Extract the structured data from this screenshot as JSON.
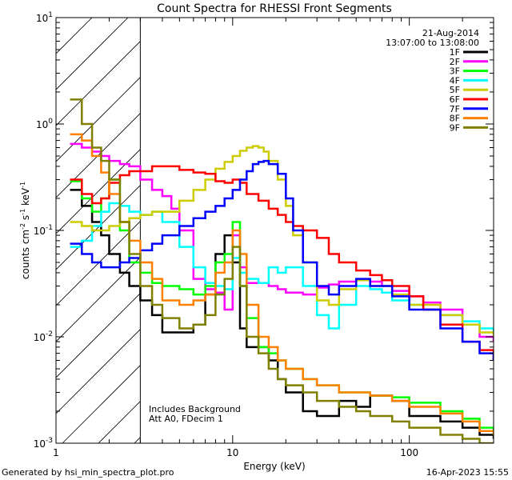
{
  "chart_data": {
    "type": "line",
    "title": "Count Spectra for RHESSI Front Segments",
    "xlabel": "Energy (keV)",
    "ylabel_main": "counts cm",
    "ylabel_exp1": "-2",
    "ylabel_mid": " s",
    "ylabel_exp2": "-1",
    "ylabel_end": " keV",
    "ylabel_exp3": "-1",
    "xscale": "log",
    "yscale": "log",
    "xlim": [
      1,
      300
    ],
    "ylim": [
      0.001,
      10
    ],
    "x_tick_labels": [
      {
        "value": 1,
        "label": "1"
      },
      {
        "value": 10,
        "label": "10"
      },
      {
        "value": 100,
        "label": "100"
      }
    ],
    "y_tick_labels": [
      {
        "value": 10,
        "base": "10",
        "exp": "1"
      },
      {
        "value": 1,
        "base": "10",
        "exp": "0"
      },
      {
        "value": 0.1,
        "base": "10",
        "exp": "-1"
      },
      {
        "value": 0.01,
        "base": "10",
        "exp": "-2"
      },
      {
        "value": 0.001,
        "base": "10",
        "exp": "-3"
      }
    ],
    "date": "21-Aug-2014",
    "time_range": "13:07:00 to 13:08:00",
    "annotations": [
      "Includes Background",
      "Att A0, FDecim 1"
    ],
    "hatched_region_x": [
      1,
      3
    ],
    "series": [
      {
        "name": "1F",
        "color": "#000000",
        "x": [
          1.2,
          1.4,
          1.6,
          1.8,
          2,
          2.3,
          2.6,
          3,
          3.5,
          4,
          5,
          6,
          7,
          8,
          9,
          10,
          11,
          12,
          14,
          16,
          18,
          20,
          25,
          30,
          40,
          50,
          60,
          80,
          100,
          150,
          200,
          250,
          300
        ],
        "y": [
          0.24,
          0.17,
          0.12,
          0.09,
          0.06,
          0.04,
          0.03,
          0.022,
          0.016,
          0.011,
          0.011,
          0.013,
          0.025,
          0.06,
          0.09,
          0.05,
          0.012,
          0.008,
          0.008,
          0.006,
          0.004,
          0.003,
          0.002,
          0.0018,
          0.0025,
          0.0022,
          0.0028,
          0.0025,
          0.0018,
          0.0016,
          0.0014,
          0.0012,
          0.0011
        ]
      },
      {
        "name": "2F",
        "color": "#ff00ff",
        "x": [
          1.2,
          1.4,
          1.6,
          1.8,
          2,
          2.3,
          2.6,
          3,
          3.5,
          4,
          4.5,
          5,
          6,
          7,
          8,
          9,
          10,
          11,
          12,
          14,
          16,
          18,
          20,
          25,
          30,
          35,
          40,
          50,
          60,
          70,
          80,
          100,
          120,
          150,
          200,
          250,
          300
        ],
        "y": [
          0.65,
          0.6,
          0.55,
          0.5,
          0.45,
          0.42,
          0.4,
          0.3,
          0.24,
          0.21,
          0.16,
          0.1,
          0.035,
          0.028,
          0.026,
          0.018,
          0.09,
          0.045,
          0.032,
          0.032,
          0.03,
          0.028,
          0.026,
          0.025,
          0.029,
          0.031,
          0.033,
          0.034,
          0.033,
          0.03,
          0.027,
          0.024,
          0.021,
          0.018,
          0.013,
          0.01,
          0.009
        ]
      },
      {
        "name": "3F",
        "color": "#00ff00",
        "x": [
          1.2,
          1.4,
          1.6,
          1.8,
          2,
          2.3,
          2.6,
          3,
          3.5,
          4,
          5,
          6,
          7,
          8,
          9,
          10,
          11,
          12,
          14,
          16,
          18,
          20,
          25,
          30,
          40,
          50,
          60,
          80,
          100,
          150,
          200,
          250,
          300
        ],
        "y": [
          0.29,
          0.2,
          0.15,
          0.2,
          0.3,
          0.1,
          0.05,
          0.04,
          0.032,
          0.03,
          0.028,
          0.025,
          0.03,
          0.05,
          0.06,
          0.12,
          0.03,
          0.015,
          0.008,
          0.007,
          0.006,
          0.005,
          0.004,
          0.0035,
          0.003,
          0.003,
          0.0028,
          0.0027,
          0.0024,
          0.002,
          0.0017,
          0.0014,
          0.0012
        ]
      },
      {
        "name": "4F",
        "color": "#00ffff",
        "x": [
          1.2,
          1.4,
          1.6,
          1.8,
          2,
          2.3,
          2.6,
          3,
          3.5,
          4,
          5,
          6,
          7,
          8,
          9,
          10,
          11,
          12,
          14,
          16,
          18,
          20,
          25,
          30,
          35,
          40,
          50,
          60,
          70,
          80,
          100,
          120,
          150,
          200,
          250,
          300
        ],
        "y": [
          0.07,
          0.08,
          0.11,
          0.15,
          0.18,
          0.17,
          0.15,
          0.14,
          0.15,
          0.12,
          0.07,
          0.045,
          0.032,
          0.03,
          0.028,
          0.055,
          0.04,
          0.035,
          0.032,
          0.045,
          0.04,
          0.045,
          0.03,
          0.016,
          0.012,
          0.02,
          0.03,
          0.028,
          0.026,
          0.022,
          0.02,
          0.018,
          0.016,
          0.014,
          0.012,
          0.011
        ]
      },
      {
        "name": "5F",
        "color": "#cccc00",
        "x": [
          1.2,
          1.4,
          1.6,
          1.8,
          2,
          2.3,
          2.6,
          3,
          3.5,
          4,
          5,
          6,
          7,
          8,
          9,
          10,
          11,
          12,
          13,
          14,
          15,
          16,
          18,
          20,
          22,
          25,
          30,
          35,
          40,
          50,
          60,
          80,
          100,
          150,
          200,
          250,
          300
        ],
        "y": [
          0.12,
          0.11,
          0.1,
          0.1,
          0.11,
          0.12,
          0.13,
          0.14,
          0.15,
          0.15,
          0.19,
          0.24,
          0.3,
          0.38,
          0.44,
          0.5,
          0.56,
          0.6,
          0.62,
          0.6,
          0.55,
          0.45,
          0.3,
          0.17,
          0.09,
          0.05,
          0.022,
          0.02,
          0.028,
          0.034,
          0.03,
          0.025,
          0.02,
          0.016,
          0.013,
          0.011,
          0.01
        ]
      },
      {
        "name": "6F",
        "color": "#ff0000",
        "x": [
          1.2,
          1.4,
          1.6,
          1.8,
          2,
          2.3,
          2.6,
          3,
          3.5,
          4,
          5,
          6,
          7,
          8,
          9,
          10,
          11,
          12,
          14,
          16,
          18,
          20,
          22,
          25,
          30,
          35,
          40,
          50,
          60,
          70,
          80,
          100,
          120,
          150,
          200,
          250,
          300
        ],
        "y": [
          0.3,
          0.22,
          0.18,
          0.2,
          0.28,
          0.33,
          0.36,
          0.36,
          0.4,
          0.4,
          0.37,
          0.35,
          0.34,
          0.29,
          0.28,
          0.3,
          0.28,
          0.22,
          0.19,
          0.16,
          0.14,
          0.12,
          0.11,
          0.1,
          0.085,
          0.06,
          0.05,
          0.042,
          0.038,
          0.034,
          0.03,
          0.024,
          0.018,
          0.013,
          0.009,
          0.0075,
          0.006
        ]
      },
      {
        "name": "7F",
        "color": "#0000ff",
        "x": [
          1.2,
          1.4,
          1.6,
          1.8,
          2,
          2.3,
          2.6,
          3,
          3.5,
          4,
          5,
          6,
          7,
          8,
          9,
          10,
          11,
          12,
          13,
          14,
          15,
          16,
          18,
          20,
          22,
          25,
          30,
          35,
          40,
          50,
          60,
          80,
          100,
          150,
          200,
          250,
          300
        ],
        "y": [
          0.075,
          0.06,
          0.05,
          0.045,
          0.045,
          0.05,
          0.055,
          0.065,
          0.075,
          0.09,
          0.11,
          0.13,
          0.15,
          0.17,
          0.2,
          0.24,
          0.3,
          0.36,
          0.42,
          0.44,
          0.45,
          0.42,
          0.34,
          0.2,
          0.1,
          0.05,
          0.03,
          0.025,
          0.03,
          0.035,
          0.03,
          0.024,
          0.018,
          0.012,
          0.009,
          0.007,
          0.006
        ]
      },
      {
        "name": "8F",
        "color": "#ff8000",
        "x": [
          1.2,
          1.4,
          1.6,
          1.8,
          2,
          2.3,
          2.6,
          3,
          3.5,
          4,
          5,
          6,
          7,
          8,
          9,
          10,
          11,
          12,
          14,
          16,
          18,
          20,
          25,
          30,
          40,
          50,
          60,
          80,
          100,
          150,
          200,
          250,
          300
        ],
        "y": [
          0.8,
          0.7,
          0.5,
          0.35,
          0.22,
          0.12,
          0.08,
          0.05,
          0.035,
          0.022,
          0.02,
          0.022,
          0.025,
          0.04,
          0.05,
          0.1,
          0.06,
          0.02,
          0.01,
          0.008,
          0.006,
          0.005,
          0.004,
          0.0035,
          0.003,
          0.003,
          0.0028,
          0.0025,
          0.0022,
          0.0019,
          0.0016,
          0.0013,
          0.0012
        ]
      },
      {
        "name": "9F",
        "color": "#808000",
        "x": [
          1.2,
          1.4,
          1.6,
          1.8,
          2,
          2.3,
          2.6,
          3,
          3.5,
          4,
          5,
          6,
          7,
          8,
          9,
          10,
          11,
          12,
          14,
          16,
          18,
          20,
          25,
          30,
          40,
          50,
          60,
          80,
          100,
          150,
          200,
          250,
          300
        ],
        "y": [
          1.7,
          1.0,
          0.6,
          0.45,
          0.3,
          0.12,
          0.06,
          0.03,
          0.02,
          0.015,
          0.012,
          0.013,
          0.016,
          0.025,
          0.035,
          0.07,
          0.03,
          0.01,
          0.007,
          0.005,
          0.004,
          0.0035,
          0.003,
          0.0025,
          0.0022,
          0.002,
          0.0018,
          0.0016,
          0.0014,
          0.0012,
          0.0011,
          0.001,
          0.001
        ]
      }
    ]
  },
  "footer": {
    "generated_by": "Generated by hsi_min_spectra_plot.pro",
    "timestamp": "16-Apr-2023 15:55"
  }
}
